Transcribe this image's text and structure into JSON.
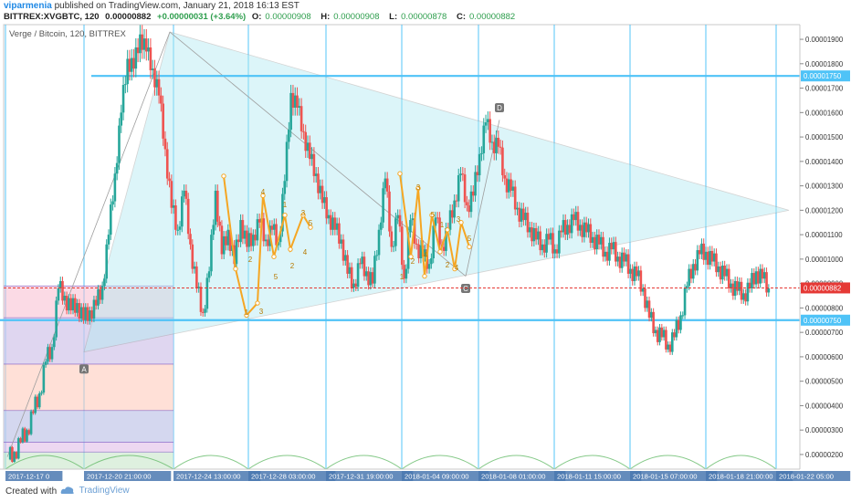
{
  "header": {
    "author": "viparmenia",
    "published_text": "published on TradingView.com, January 21, 2018 16:13 EST",
    "symbol": "BITTREX:XVGBTC, 120",
    "last": "0.00000882",
    "change": "+0.00000031 (+3.64%)",
    "O_label": "O:",
    "O": "0.00000908",
    "H_label": "H:",
    "H": "0.00000908",
    "L_label": "L:",
    "L": "0.00000878",
    "C_label": "C:",
    "C": "0.00000882"
  },
  "footer": {
    "created_with": "Created with",
    "brand": "TradingView"
  },
  "colors": {
    "up": "#26a69a",
    "down": "#ef5350",
    "triangle_fill": "#b2ebf2",
    "level_line": "#4fc3f7",
    "wave": "#f5a623",
    "price_line": "#e53935"
  },
  "chart_data": {
    "type": "candlestick",
    "title": "Verge / Bitcoin, 120, BITTREX",
    "y_axis_ticks": [
      "0.00001900",
      "0.00001800",
      "0.00001700",
      "0.00001600",
      "0.00001500",
      "0.00001400",
      "0.00001300",
      "0.00001200",
      "0.00001100",
      "0.00001000",
      "0.00000900",
      "0.00000800",
      "0.00000700",
      "0.00000600",
      "0.00000500",
      "0.00000400",
      "0.00000300",
      "0.00000200"
    ],
    "ylim": [
      1.4e-06,
      1.96e-05
    ],
    "x_axis_ticks": [
      "2017-12-17 0",
      "2017-12-20 21:00:00",
      "2017-12-24 13:00:00",
      "2017-12-28 03:00:00",
      "2017-12-31 19:00:00",
      "2018-01-04 09:00:00",
      "2018-01-08 01:00:00",
      "2018-01-11 15:00:00",
      "2018-01-15 07:00:00",
      "2018-01-18 21:00:00",
      "2018-01-22 05:00"
    ],
    "price_labels": [
      {
        "text": "0.00001750",
        "value": 1.75e-05,
        "color": "#4fc3f7"
      },
      {
        "text": "0.00000882",
        "value": 8.82e-06,
        "color": "#e53935"
      },
      {
        "text": "0.00000750",
        "value": 7.5e-06,
        "color": "#4fc3f7"
      }
    ],
    "horizontal_levels": [
      1.75e-05,
      7.5e-06
    ],
    "current_price": 8.82e-06,
    "price_path": [
      [
        0,
        1.8e-06
      ],
      [
        2,
        2.1e-06
      ],
      [
        4,
        2.5e-06
      ],
      [
        6,
        3e-06
      ],
      [
        8,
        3.7e-06
      ],
      [
        10,
        4.5e-06
      ],
      [
        12,
        5.8e-06
      ],
      [
        14,
        6.4e-06
      ],
      [
        16,
        8.8e-06
      ],
      [
        18,
        8.5e-06
      ],
      [
        20,
        7.9e-06
      ],
      [
        22,
        8.2e-06
      ],
      [
        24,
        7.5e-06
      ],
      [
        26,
        7.9e-06
      ],
      [
        28,
        8.1e-06
      ],
      [
        30,
        8.9e-06
      ],
      [
        32,
        1.1e-05
      ],
      [
        34,
        1.35e-05
      ],
      [
        36,
        1.6e-05
      ],
      [
        38,
        1.82e-05
      ],
      [
        40,
        1.78e-05
      ],
      [
        42,
        1.92e-05
      ],
      [
        44,
        1.85e-05
      ],
      [
        46,
        1.78e-05
      ],
      [
        48,
        1.67e-05
      ],
      [
        50,
        1.45e-05
      ],
      [
        52,
        1.21e-05
      ],
      [
        54,
        1.12e-05
      ],
      [
        56,
        1.28e-05
      ],
      [
        58,
        1.06e-05
      ],
      [
        60,
        8.8e-06
      ],
      [
        62,
        7.8e-06
      ],
      [
        64,
        9.5e-06
      ],
      [
        66,
        1.28e-05
      ],
      [
        68,
        1.02e-05
      ],
      [
        70,
        1.12e-05
      ],
      [
        72,
        9.8e-06
      ],
      [
        74,
        1.16e-05
      ],
      [
        76,
        1.05e-05
      ],
      [
        78,
        1.1e-05
      ],
      [
        80,
        1.15e-05
      ],
      [
        82,
        1.08e-05
      ],
      [
        84,
        1.12e-05
      ],
      [
        86,
        1.07e-05
      ],
      [
        88,
        1.32e-05
      ],
      [
        90,
        1.68e-05
      ],
      [
        92,
        1.62e-05
      ],
      [
        94,
        1.52e-05
      ],
      [
        96,
        1.41e-05
      ],
      [
        98,
        1.35e-05
      ],
      [
        100,
        1.23e-05
      ],
      [
        102,
        1.18e-05
      ],
      [
        104,
        1.12e-05
      ],
      [
        106,
        1.08e-05
      ],
      [
        108,
        9.4e-06
      ],
      [
        110,
        9e-06
      ],
      [
        112,
        9.8e-06
      ],
      [
        114,
        9.5e-06
      ],
      [
        116,
        9e-06
      ],
      [
        118,
        1.12e-05
      ],
      [
        120,
        1.33e-05
      ],
      [
        122,
        1.05e-05
      ],
      [
        124,
        1.18e-05
      ],
      [
        126,
        9.2e-06
      ],
      [
        128,
        1.16e-05
      ],
      [
        130,
        1.06e-05
      ],
      [
        132,
        1.01e-05
      ],
      [
        134,
        9.8e-06
      ],
      [
        136,
        1.17e-05
      ],
      [
        138,
        1.05e-05
      ],
      [
        140,
        1.12e-05
      ],
      [
        142,
        1.24e-05
      ],
      [
        144,
        1.35e-05
      ],
      [
        146,
        1.22e-05
      ],
      [
        148,
        1.26e-05
      ],
      [
        150,
        1.43e-05
      ],
      [
        152,
        1.56e-05
      ],
      [
        154,
        1.48e-05
      ],
      [
        156,
        1.46e-05
      ],
      [
        158,
        1.33e-05
      ],
      [
        160,
        1.28e-05
      ],
      [
        162,
        1.21e-05
      ],
      [
        164,
        1.16e-05
      ],
      [
        166,
        1.13e-05
      ],
      [
        168,
        1.08e-05
      ],
      [
        170,
        1.06e-05
      ],
      [
        172,
        1.08e-05
      ],
      [
        174,
        1.04e-05
      ],
      [
        176,
        1.11e-05
      ],
      [
        178,
        1.14e-05
      ],
      [
        180,
        1.16e-05
      ],
      [
        182,
        1.14e-05
      ],
      [
        184,
        1.11e-05
      ],
      [
        186,
        1.09e-05
      ],
      [
        188,
        1.06e-05
      ],
      [
        190,
        1.03e-05
      ],
      [
        192,
        1.04e-05
      ],
      [
        194,
        1.01e-05
      ],
      [
        196,
        9.9e-06
      ],
      [
        198,
        9.6e-06
      ],
      [
        200,
        9.3e-06
      ],
      [
        202,
        8.8e-06
      ],
      [
        204,
        7.6e-06
      ],
      [
        206,
        7.1e-06
      ],
      [
        208,
        6.8e-06
      ],
      [
        210,
        6.5e-06
      ],
      [
        212,
        6.8e-06
      ],
      [
        214,
        7.7e-06
      ],
      [
        216,
        8.9e-06
      ],
      [
        218,
        9.8e-06
      ],
      [
        220,
        1.02e-05
      ],
      [
        222,
        1.03e-05
      ],
      [
        224,
        9.9e-06
      ],
      [
        226,
        9.7e-06
      ],
      [
        228,
        9.3e-06
      ],
      [
        230,
        9e-06
      ],
      [
        232,
        8.7e-06
      ],
      [
        234,
        8.6e-06
      ],
      [
        236,
        8.8e-06
      ],
      [
        238,
        9.5e-06
      ],
      [
        240,
        9.2e-06
      ],
      [
        242,
        8.8e-06
      ]
    ],
    "annotations": {
      "points": [
        "A",
        "C",
        "D"
      ],
      "wave_labels": [
        "1",
        "2",
        "3",
        "4",
        "5",
        "1",
        "2",
        "3",
        "4",
        "5",
        "1",
        "2",
        "3",
        "4",
        "5",
        "1",
        "2",
        "3",
        "4",
        "5"
      ]
    }
  }
}
